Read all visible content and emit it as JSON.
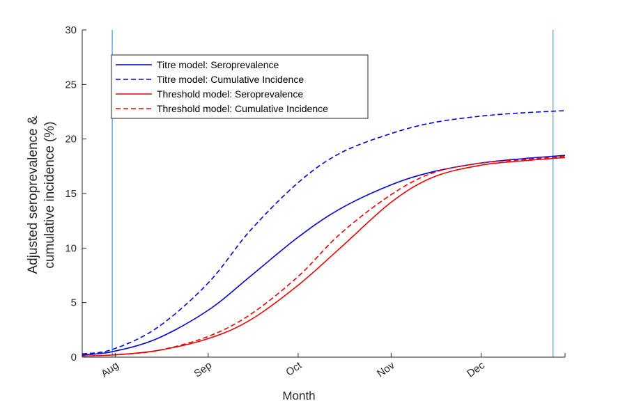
{
  "chart_data": {
    "type": "line",
    "title": "",
    "xlabel": "Month",
    "ylabel_line1": "Adjusted seroprevalence &",
    "ylabel_line2": "cumulative incidence (%)",
    "ylim": [
      0,
      30
    ],
    "yticks": [
      0,
      5,
      10,
      15,
      20,
      25,
      30
    ],
    "xlim": [
      "2020-07-21",
      "2020-12-29"
    ],
    "xticks": [
      {
        "date": "2020-08-01",
        "label": "Aug"
      },
      {
        "date": "2020-09-01",
        "label": "Sep"
      },
      {
        "date": "2020-10-01",
        "label": "Oct"
      },
      {
        "date": "2020-11-01",
        "label": "Nov"
      },
      {
        "date": "2020-12-01",
        "label": "Dec"
      }
    ],
    "vlines": [
      "2020-07-31",
      "2020-12-25"
    ],
    "grid": false,
    "legend_position": "top-left",
    "x": [
      "2020-07-21",
      "2020-07-31",
      "2020-08-15",
      "2020-09-01",
      "2020-09-15",
      "2020-10-01",
      "2020-10-15",
      "2020-11-01",
      "2020-11-15",
      "2020-12-01",
      "2020-12-15",
      "2020-12-29"
    ],
    "series": [
      {
        "name": "Titre model: Seroprevalence",
        "color": "#0000dd",
        "dash": "solid",
        "values": [
          0.2,
          0.5,
          1.7,
          4.3,
          7.4,
          11.0,
          13.6,
          15.8,
          17.0,
          17.8,
          18.2,
          18.5
        ]
      },
      {
        "name": "Titre model: Cumulative Incidence",
        "color": "#0000dd",
        "dash": "dashed",
        "values": [
          0.3,
          0.7,
          2.7,
          6.8,
          11.6,
          16.0,
          18.7,
          20.5,
          21.5,
          22.1,
          22.4,
          22.6
        ]
      },
      {
        "name": "Threshold model: Seroprevalence",
        "color": "#ee0000",
        "dash": "solid",
        "values": [
          0.1,
          0.2,
          0.6,
          1.7,
          3.4,
          6.6,
          10.0,
          14.2,
          16.5,
          17.6,
          18.0,
          18.3
        ]
      },
      {
        "name": "Threshold model: Cumulative Incidence",
        "color": "#ee0000",
        "dash": "dashed",
        "values": [
          0.1,
          0.2,
          0.6,
          1.9,
          3.9,
          7.4,
          11.3,
          14.9,
          16.9,
          17.8,
          18.1,
          18.4
        ]
      }
    ]
  }
}
